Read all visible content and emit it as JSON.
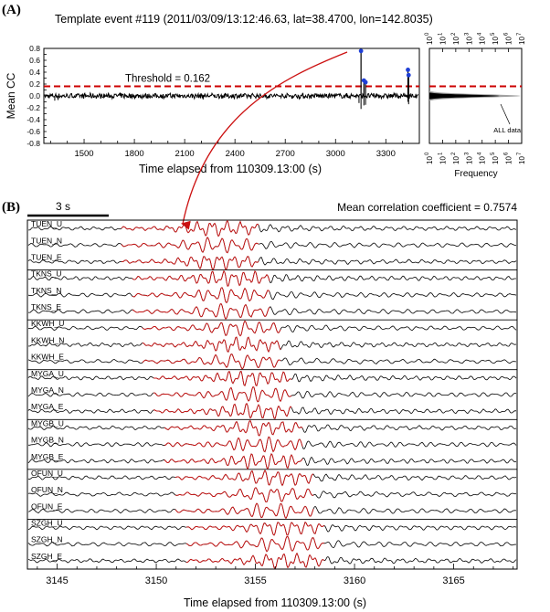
{
  "panel_a": {
    "label": "(A)",
    "title": "Template event #119 (2011/03/09/13:12:46.63, lat=38.4700, lon=142.8035)",
    "threshold_label": "Threshold = 0.162",
    "xlabel": "Time elapsed from 110309.13:00 (s)",
    "ylabel": "Mean CC",
    "histogram": {
      "xlabel": "Frequency",
      "annotation": "ALL data",
      "tick_labels": [
        "10",
        "10",
        "10",
        "10",
        "10",
        "10",
        "10",
        "10"
      ],
      "tick_exponents": [
        "0",
        "1",
        "2",
        "3",
        "4",
        "5",
        "6",
        "7"
      ]
    }
  },
  "panel_b": {
    "label": "(B)",
    "scale_bar_label": "3 s",
    "mean_cc_label": "Mean correlation coefficient = 0.7574",
    "xlabel": "Time elapsed from 110309.13:00 (s)",
    "traces": [
      "TUEN_U",
      "TUEN_N",
      "TUEN_E",
      "TKNS_U",
      "TKNS_N",
      "TKNS_E",
      "KKWH_U",
      "KKWH_N",
      "KKWH_E",
      "MYGA_U",
      "MYGA_N",
      "MYGA_E",
      "MYGB_U",
      "MYGB_N",
      "MYGB_E",
      "OFUN_U",
      "OFUN_N",
      "OFUN_E",
      "SZGH_U",
      "SZGH_N",
      "SZGH_E"
    ]
  },
  "colors": {
    "threshold": "#cc0000",
    "detection_marker": "#1f3fd6",
    "template_waveform": "#cc1111",
    "continuous_waveform": "#000000",
    "histogram_template": "#000000",
    "histogram_all": "#a0a0a0"
  },
  "chart_data": [
    {
      "type": "line",
      "title": "Template event #119 (2011/03/09/13:12:46.63, lat=38.4700, lon=142.8035)",
      "xlabel": "Time elapsed from 110309.13:00 (s)",
      "ylabel": "Mean CC",
      "xlim": [
        1260,
        3500
      ],
      "ylim": [
        -0.8,
        0.8
      ],
      "x_ticks": [
        1500,
        1800,
        2100,
        2400,
        2700,
        3000,
        3300
      ],
      "y_ticks": [
        -0.8,
        -0.7,
        -0.6,
        -0.5,
        -0.4,
        -0.3,
        -0.2,
        -0.1,
        0.0,
        0.1,
        0.2,
        0.3,
        0.4,
        0.5,
        0.6,
        0.7,
        0.8
      ],
      "threshold": 0.162,
      "detections": [
        {
          "x": 3152,
          "y": 0.757
        },
        {
          "x": 3169,
          "y": 0.26
        },
        {
          "x": 3179,
          "y": 0.23
        },
        {
          "x": 3432,
          "y": 0.44
        },
        {
          "x": 3436,
          "y": 0.35
        }
      ],
      "grid": false
    },
    {
      "type": "bar",
      "orientation": "horizontal",
      "xlabel": "Frequency",
      "x_scale": "log",
      "xlim": [
        1,
        10000000
      ],
      "ylim": [
        -0.8,
        0.8
      ],
      "series": [
        {
          "name": "ALL data"
        }
      ]
    },
    {
      "type": "line",
      "xlabel": "Time elapsed from 110309.13:00 (s)",
      "xlim": [
        3143.5,
        3168.2
      ],
      "x_ticks": [
        3145,
        3150,
        3155,
        3160,
        3165
      ],
      "grid": false,
      "series_labels": [
        "TUEN_U",
        "TUEN_N",
        "TUEN_E",
        "TKNS_U",
        "TKNS_N",
        "TKNS_E",
        "KKWH_U",
        "KKWH_N",
        "KKWH_E",
        "MYGA_U",
        "MYGA_N",
        "MYGA_E",
        "MYGB_U",
        "MYGB_N",
        "MYGB_E",
        "OFUN_U",
        "OFUN_N",
        "OFUN_E",
        "SZGH_U",
        "SZGH_N",
        "SZGH_E"
      ]
    }
  ]
}
